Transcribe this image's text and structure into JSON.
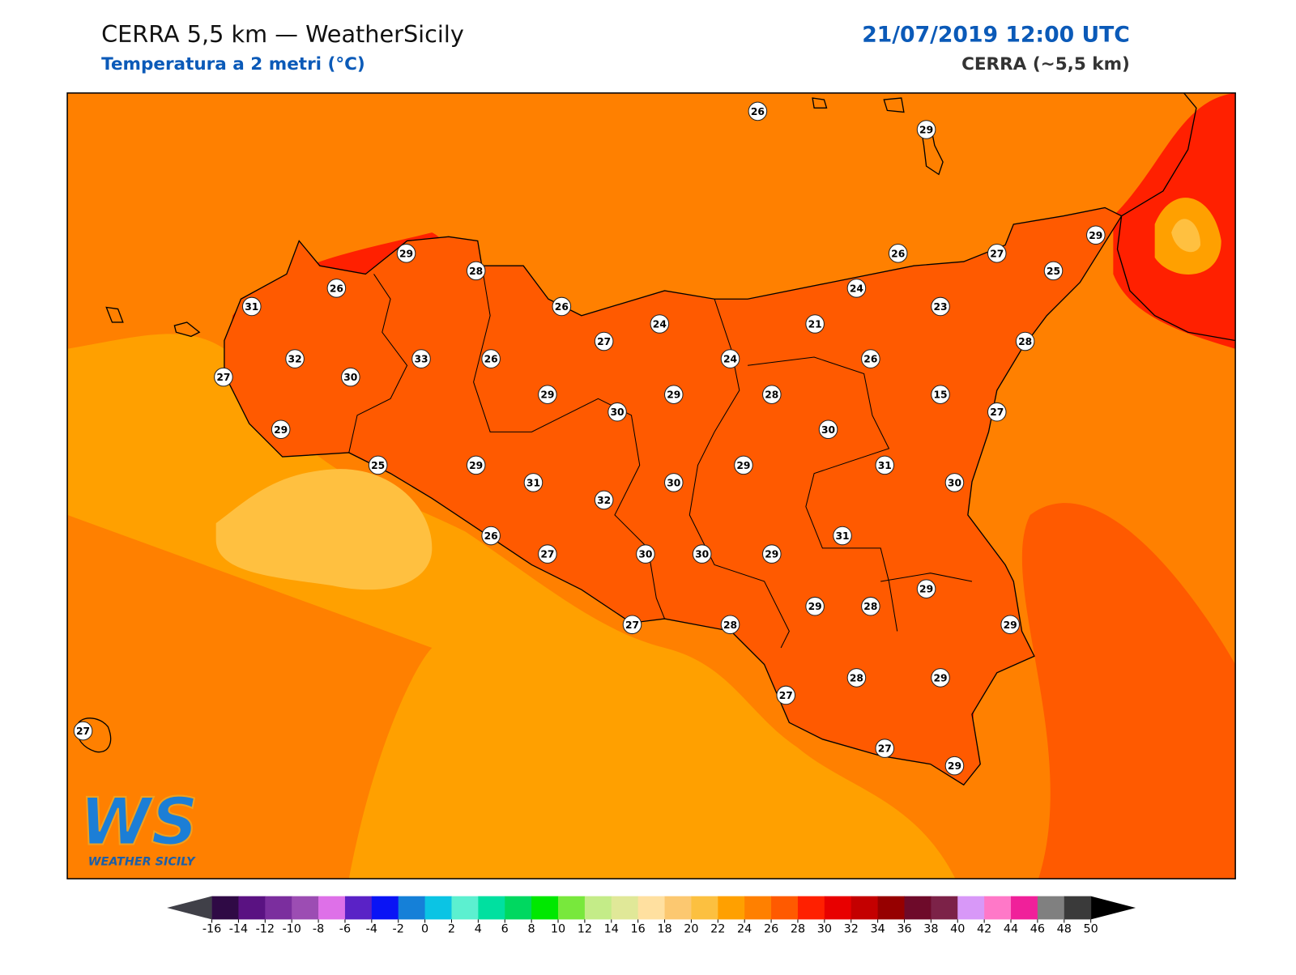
{
  "header": {
    "title": "CERRA 5,5 km — WeatherSicily",
    "subtitle": "Temperatura a 2 metri (°C)",
    "datetime": "21/07/2019 12:00 UTC",
    "model": "CERRA (~5,5 km)"
  },
  "stations": [
    26,
    29,
    29,
    28,
    26,
    31,
    26,
    24,
    27,
    32,
    33,
    26,
    27,
    30,
    29,
    29,
    30,
    29,
    25,
    29,
    31,
    30,
    32,
    26,
    27,
    30,
    30,
    27,
    28,
    27,
    26,
    27,
    29,
    25,
    24,
    23,
    21,
    28,
    24,
    26,
    28,
    15,
    27,
    30,
    29,
    31,
    30,
    31,
    29,
    29,
    28,
    29,
    29,
    28,
    29,
    27,
    29,
    27
  ],
  "colorbar": {
    "ticks": [
      -16,
      -14,
      -12,
      -10,
      -8,
      -6,
      -4,
      -2,
      0,
      2,
      4,
      6,
      8,
      10,
      12,
      14,
      16,
      18,
      20,
      22,
      24,
      26,
      28,
      30,
      32,
      34,
      36,
      38,
      40,
      42,
      44,
      46,
      48,
      50
    ],
    "colors": [
      "#2f0a45",
      "#5a1282",
      "#7b2e9e",
      "#9c4db3",
      "#de70e8",
      "#5a22c6",
      "#0a14f5",
      "#1580d8",
      "#0bc4e4",
      "#5cf0d0",
      "#00e0a0",
      "#00d860",
      "#00e800",
      "#78e83c",
      "#c4ec88",
      "#e0e898",
      "#ffe0a0",
      "#fcc870",
      "#fcc040",
      "#ffa000",
      "#ff8000",
      "#ff5a00",
      "#ff2000",
      "#e80000",
      "#c40000",
      "#960000",
      "#6e0a2a",
      "#7c2248",
      "#d898f8",
      "#ff78c8",
      "#f0209a",
      "#808080",
      "#3a3a3a"
    ],
    "under_color": "#404048",
    "over_color": "#000000"
  },
  "logo": {
    "mark": "WS",
    "text": "WEATHER SICILY"
  }
}
